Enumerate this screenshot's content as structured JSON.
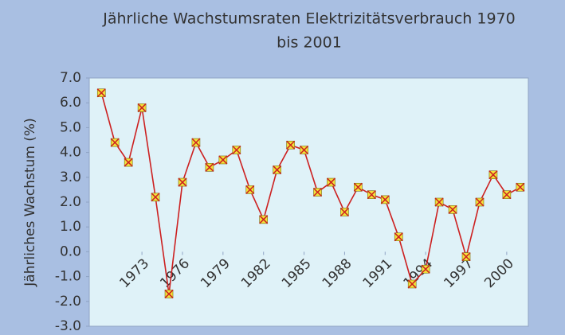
{
  "chart_data": {
    "type": "line",
    "title": "Jährliche Wachstumsraten Elektrizitätsverbrauch 1970",
    "subtitle": "bis 2001",
    "y_label": "Jährliches Wachstum (%)",
    "x": [
      1970,
      1971,
      1972,
      1973,
      1974,
      1975,
      1976,
      1977,
      1978,
      1979,
      1980,
      1981,
      1982,
      1983,
      1984,
      1985,
      1986,
      1987,
      1988,
      1989,
      1990,
      1991,
      1992,
      1993,
      1994,
      1995,
      1996,
      1997,
      1998,
      1999,
      2000,
      2001
    ],
    "series": [
      {
        "color": "#cc2020",
        "marker_color": "#f2e23a",
        "values": [
          6.4,
          4.4,
          3.6,
          5.8,
          2.2,
          -1.7,
          2.8,
          4.4,
          3.4,
          3.7,
          4.1,
          2.5,
          1.3,
          3.3,
          4.3,
          4.1,
          2.4,
          2.8,
          1.6,
          2.6,
          2.3,
          2.1,
          0.6,
          -1.3,
          -0.7,
          2.0,
          1.7,
          -0.2,
          2.0,
          3.1,
          2.3,
          2.6
        ]
      }
    ],
    "xlim": [
      1969.1,
      2001.6
    ],
    "xticks": [
      1973,
      1976,
      1979,
      1982,
      1985,
      1988,
      1991,
      1994,
      1997,
      2000
    ],
    "ylim": [
      -3,
      7
    ],
    "yticks": [
      {
        "value": 7,
        "label": "7.0"
      },
      {
        "value": 6,
        "label": "6.0"
      },
      {
        "value": 5,
        "label": "5.0"
      },
      {
        "value": 4,
        "label": "4.0"
      },
      {
        "value": 3,
        "label": "3.0"
      },
      {
        "value": 2,
        "label": "2.0"
      },
      {
        "value": 1,
        "label": "1.0"
      },
      {
        "value": 0,
        "label": "0.0"
      },
      {
        "value": -1,
        "label": "-1.0"
      },
      {
        "value": -2,
        "label": "-2.0"
      },
      {
        "value": -3,
        "label": "-3.0"
      }
    ]
  }
}
